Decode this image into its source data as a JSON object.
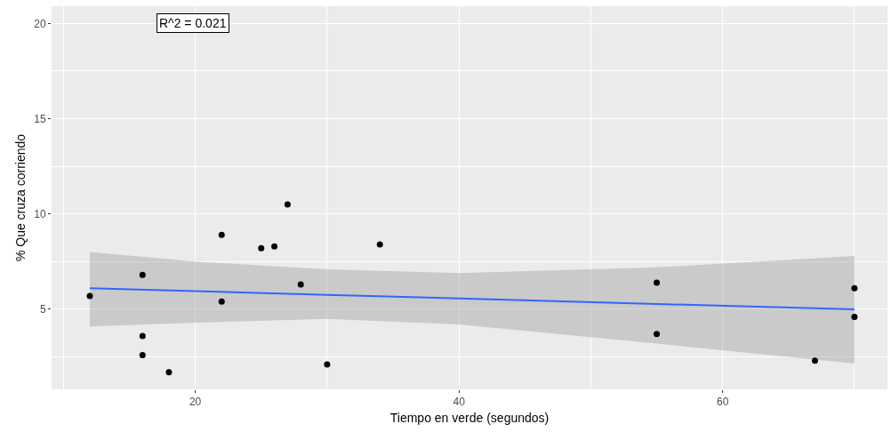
{
  "chart_data": {
    "type": "scatter",
    "xlabel": "Tiempo en verde (segundos)",
    "ylabel": "% Que cruza corriendo",
    "annotations": [
      "R^2 = 0.021"
    ],
    "series": [
      {
        "color": "#000000",
        "marker": "circle",
        "x": [
          12,
          16,
          16,
          16,
          18,
          22,
          22,
          25,
          26,
          27,
          28,
          30,
          34,
          55,
          55,
          67,
          70,
          70
        ],
        "values": [
          5.7,
          6.8,
          3.6,
          2.6,
          1.7,
          8.9,
          5.4,
          8.2,
          8.3,
          10.5,
          6.3,
          2.1,
          8.4,
          6.4,
          3.7,
          2.3,
          6.1,
          4.6
        ]
      },
      {
        "type": "line",
        "color": "#3366ff",
        "line_style": "solid",
        "x": [
          12,
          20,
          30,
          40,
          55,
          70
        ],
        "values": [
          6.1,
          5.95,
          5.76,
          5.57,
          5.28,
          5.0
        ],
        "lower": [
          4.1,
          4.3,
          4.5,
          4.2,
          3.2,
          2.15
        ],
        "upper": [
          8.0,
          7.5,
          7.1,
          6.9,
          7.2,
          7.8
        ]
      }
    ],
    "xlim": [
      9.1,
      72.5
    ],
    "ylim": [
      0.8,
      20.9
    ],
    "xticks": [
      20,
      40,
      60
    ],
    "yticks": [
      5,
      10,
      15,
      20
    ],
    "grid": true
  }
}
